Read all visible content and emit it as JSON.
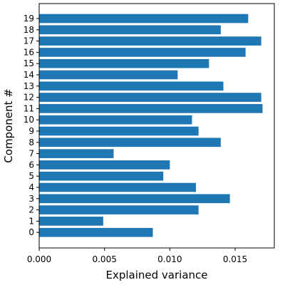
{
  "chart_data": {
    "type": "bar",
    "orientation": "horizontal",
    "title": "",
    "xlabel": "Explained variance",
    "ylabel": "Component #",
    "xlim": [
      0,
      0.018
    ],
    "x_ticks": [
      0.0,
      0.005,
      0.01,
      0.015
    ],
    "x_tick_labels": [
      "0.000",
      "0.005",
      "0.010",
      "0.015"
    ],
    "categories": [
      "0",
      "1",
      "2",
      "3",
      "4",
      "5",
      "6",
      "7",
      "8",
      "9",
      "10",
      "11",
      "12",
      "13",
      "14",
      "15",
      "16",
      "17",
      "18",
      "19"
    ],
    "values": [
      0.0087,
      0.0049,
      0.0122,
      0.0146,
      0.012,
      0.0095,
      0.01,
      0.0057,
      0.0139,
      0.0122,
      0.0117,
      0.0171,
      0.017,
      0.0141,
      0.0106,
      0.013,
      0.0158,
      0.017,
      0.0139,
      0.016
    ],
    "grid": false,
    "colors": {
      "bar": "#1f77b4",
      "axis": "#000000"
    }
  }
}
